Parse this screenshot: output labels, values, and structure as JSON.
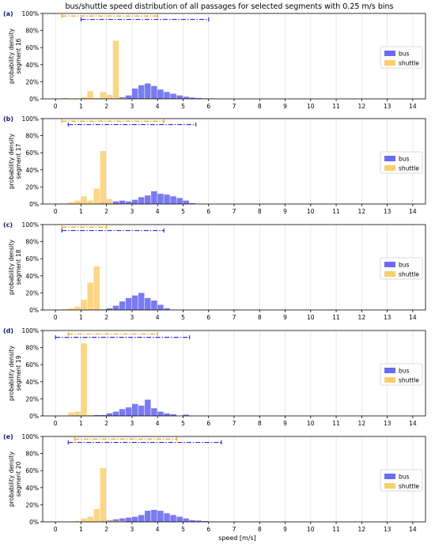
{
  "chart_data": [
    {
      "type": "bar",
      "panel_label": "(a)",
      "title": "bus/shuttle speed distribution of all passages for selected segments with 0.25 m/s bins",
      "ylabel": "probability density\nsegment 16",
      "xlabel": "",
      "xlim": [
        -0.5,
        14.5
      ],
      "ylim": [
        0,
        100
      ],
      "xticks": [
        "0",
        "1",
        "2",
        "3",
        "4",
        "5",
        "6",
        "7",
        "8",
        "9",
        "10",
        "11",
        "12",
        "13",
        "14"
      ],
      "yticks": [
        "0%",
        "20%",
        "40%",
        "60%",
        "80%",
        "100%"
      ],
      "grid": "vertical",
      "legend": "right",
      "bin_width": 0.25,
      "series": [
        {
          "name": "bus",
          "color": "#6b6bf0",
          "bins": [
            [
              2.25,
              0.5
            ],
            [
              2.5,
              2
            ],
            [
              2.75,
              4
            ],
            [
              3.0,
              12
            ],
            [
              3.25,
              16
            ],
            [
              3.5,
              18
            ],
            [
              3.75,
              15
            ],
            [
              4.0,
              11
            ],
            [
              4.25,
              8
            ],
            [
              4.5,
              6
            ],
            [
              4.75,
              4
            ],
            [
              5.0,
              2.5
            ],
            [
              5.25,
              1.5
            ],
            [
              5.5,
              1
            ],
            [
              5.75,
              0.5
            ],
            [
              6.0,
              0.5
            ]
          ]
        },
        {
          "name": "shuttle",
          "color": "#fbcf6f",
          "bins": [
            [
              0.25,
              1
            ],
            [
              0.75,
              0.5
            ],
            [
              1.0,
              2
            ],
            [
              1.25,
              9
            ],
            [
              1.5,
              1
            ],
            [
              1.75,
              8
            ],
            [
              2.0,
              5
            ],
            [
              2.25,
              68
            ],
            [
              2.5,
              1
            ]
          ]
        }
      ],
      "ranges": [
        {
          "series": "shuttle",
          "color": "#f0a020",
          "y": 97,
          "from": 0.25,
          "to": 4.0
        },
        {
          "series": "bus",
          "color": "#2a2ad8",
          "y": 93,
          "from": 1.0,
          "to": 6.0
        }
      ]
    },
    {
      "type": "bar",
      "panel_label": "(b)",
      "ylabel": "probability density\nsegment 17",
      "xlabel": "",
      "xlim": [
        -0.5,
        14.5
      ],
      "ylim": [
        0,
        100
      ],
      "xticks": [
        "0",
        "1",
        "2",
        "3",
        "4",
        "5",
        "6",
        "7",
        "8",
        "9",
        "10",
        "11",
        "12",
        "13",
        "14"
      ],
      "yticks": [
        "0%",
        "20%",
        "40%",
        "60%",
        "80%",
        "100%"
      ],
      "grid": "vertical",
      "legend": "right",
      "bin_width": 0.25,
      "series": [
        {
          "name": "bus",
          "color": "#6b6bf0",
          "bins": [
            [
              1.75,
              2
            ],
            [
              2.0,
              1
            ],
            [
              2.25,
              3
            ],
            [
              2.5,
              4
            ],
            [
              2.75,
              3
            ],
            [
              3.0,
              5
            ],
            [
              3.25,
              8
            ],
            [
              3.5,
              10
            ],
            [
              3.75,
              15
            ],
            [
              4.0,
              12
            ],
            [
              4.25,
              11
            ],
            [
              4.5,
              9
            ],
            [
              4.75,
              7
            ],
            [
              5.0,
              4
            ],
            [
              5.25,
              1
            ]
          ]
        },
        {
          "name": "shuttle",
          "color": "#fbcf6f",
          "bins": [
            [
              0.25,
              0.5
            ],
            [
              0.5,
              2
            ],
            [
              0.75,
              4
            ],
            [
              1.0,
              9
            ],
            [
              1.25,
              4
            ],
            [
              1.5,
              18
            ],
            [
              1.75,
              62
            ],
            [
              2.0,
              6
            ]
          ]
        }
      ],
      "ranges": [
        {
          "series": "shuttle",
          "color": "#f0a020",
          "y": 97,
          "from": 0.25,
          "to": 4.25
        },
        {
          "series": "bus",
          "color": "#2a2ad8",
          "y": 93,
          "from": 0.5,
          "to": 5.5
        }
      ]
    },
    {
      "type": "bar",
      "panel_label": "(c)",
      "ylabel": "probability density\nsegment 18",
      "xlabel": "",
      "xlim": [
        -0.5,
        14.5
      ],
      "ylim": [
        0,
        100
      ],
      "xticks": [
        "0",
        "1",
        "2",
        "3",
        "4",
        "5",
        "6",
        "7",
        "8",
        "9",
        "10",
        "11",
        "12",
        "13",
        "14"
      ],
      "yticks": [
        "0%",
        "20%",
        "40%",
        "60%",
        "80%",
        "100%"
      ],
      "grid": "vertical",
      "legend": "right",
      "bin_width": 0.25,
      "series": [
        {
          "name": "bus",
          "color": "#6b6bf0",
          "bins": [
            [
              1.5,
              1
            ],
            [
              1.75,
              0.5
            ],
            [
              2.0,
              2
            ],
            [
              2.25,
              5
            ],
            [
              2.5,
              10
            ],
            [
              2.75,
              14
            ],
            [
              3.0,
              17
            ],
            [
              3.25,
              20
            ],
            [
              3.5,
              14
            ],
            [
              3.75,
              11
            ],
            [
              4.0,
              6
            ],
            [
              4.25,
              2
            ]
          ]
        },
        {
          "name": "shuttle",
          "color": "#fbcf6f",
          "bins": [
            [
              0.25,
              1
            ],
            [
              0.5,
              2
            ],
            [
              0.75,
              4
            ],
            [
              1.0,
              12
            ],
            [
              1.25,
              32
            ],
            [
              1.5,
              51
            ],
            [
              1.75,
              1
            ]
          ]
        }
      ],
      "ranges": [
        {
          "series": "shuttle",
          "color": "#f0a020",
          "y": 97,
          "from": 0.25,
          "to": 2.0
        },
        {
          "series": "bus",
          "color": "#2a2ad8",
          "y": 93,
          "from": 0.25,
          "to": 4.25
        }
      ]
    },
    {
      "type": "bar",
      "panel_label": "(d)",
      "ylabel": "probability density\nsegment 19",
      "xlabel": "",
      "xlim": [
        -0.5,
        14.5
      ],
      "ylim": [
        0,
        100
      ],
      "xticks": [
        "0",
        "1",
        "2",
        "3",
        "4",
        "5",
        "6",
        "7",
        "8",
        "9",
        "10",
        "11",
        "12",
        "13",
        "14"
      ],
      "yticks": [
        "0%",
        "20%",
        "40%",
        "60%",
        "80%",
        "100%"
      ],
      "grid": "vertical",
      "legend": "right",
      "bin_width": 0.25,
      "series": [
        {
          "name": "bus",
          "color": "#6b6bf0",
          "bins": [
            [
              1.5,
              1
            ],
            [
              1.75,
              1
            ],
            [
              2.0,
              3
            ],
            [
              2.25,
              5
            ],
            [
              2.5,
              8
            ],
            [
              2.75,
              10
            ],
            [
              3.0,
              14
            ],
            [
              3.25,
              12
            ],
            [
              3.5,
              19
            ],
            [
              3.75,
              9
            ],
            [
              4.0,
              5
            ],
            [
              4.25,
              3
            ],
            [
              4.5,
              2
            ],
            [
              5.0,
              1.5
            ]
          ]
        },
        {
          "name": "shuttle",
          "color": "#fbcf6f",
          "bins": [
            [
              0.5,
              4
            ],
            [
              0.75,
              5
            ],
            [
              1.0,
              85
            ],
            [
              1.25,
              1
            ]
          ]
        }
      ],
      "ranges": [
        {
          "series": "shuttle",
          "color": "#f0a020",
          "y": 96,
          "from": 0.5,
          "to": 4.0
        },
        {
          "series": "bus",
          "color": "#2a2ad8",
          "y": 92,
          "from": 0.0,
          "to": 5.25
        }
      ]
    },
    {
      "type": "bar",
      "panel_label": "(e)",
      "ylabel": "probability density\nsegment 20",
      "xlabel": "speed [m/s]",
      "xlim": [
        -0.5,
        14.5
      ],
      "ylim": [
        0,
        100
      ],
      "xticks": [
        "0",
        "1",
        "2",
        "3",
        "4",
        "5",
        "6",
        "7",
        "8",
        "9",
        "10",
        "11",
        "12",
        "13",
        "14"
      ],
      "yticks": [
        "0%",
        "20%",
        "40%",
        "60%",
        "80%",
        "100%"
      ],
      "grid": "vertical",
      "legend": "right",
      "bin_width": 0.25,
      "series": [
        {
          "name": "bus",
          "color": "#6b6bf0",
          "bins": [
            [
              1.75,
              1
            ],
            [
              2.0,
              2
            ],
            [
              2.25,
              3
            ],
            [
              2.5,
              4
            ],
            [
              2.75,
              5
            ],
            [
              3.0,
              6
            ],
            [
              3.25,
              8
            ],
            [
              3.5,
              13
            ],
            [
              3.75,
              14
            ],
            [
              4.0,
              13
            ],
            [
              4.25,
              10
            ],
            [
              4.5,
              8
            ],
            [
              4.75,
              6
            ],
            [
              5.0,
              4
            ],
            [
              5.25,
              2
            ],
            [
              5.5,
              1.5
            ],
            [
              5.75,
              1
            ],
            [
              6.0,
              0.5
            ]
          ]
        },
        {
          "name": "shuttle",
          "color": "#fbcf6f",
          "bins": [
            [
              0.5,
              0.5
            ],
            [
              0.75,
              1
            ],
            [
              1.0,
              4
            ],
            [
              1.25,
              6
            ],
            [
              1.5,
              15
            ],
            [
              1.75,
              63
            ],
            [
              2.0,
              1.5
            ],
            [
              2.25,
              1
            ],
            [
              2.5,
              1
            ]
          ]
        }
      ],
      "ranges": [
        {
          "series": "shuttle",
          "color": "#f0a020",
          "y": 97,
          "from": 0.75,
          "to": 4.75
        },
        {
          "series": "bus",
          "color": "#2a2ad8",
          "y": 93,
          "from": 0.5,
          "to": 6.5
        }
      ]
    }
  ]
}
